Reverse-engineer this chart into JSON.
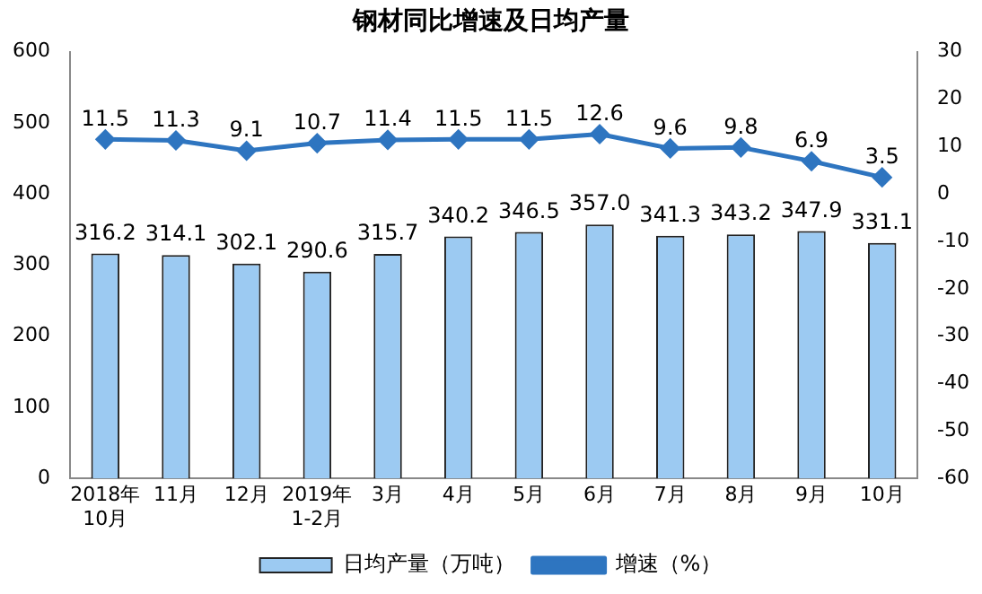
{
  "chart_data": {
    "type": "bar",
    "title": "钢材同比增速及日均产量",
    "categories": [
      "2018年\n10月",
      "11月",
      "12月",
      "2019年\n1-2月",
      "3月",
      "4月",
      "5月",
      "6月",
      "7月",
      "8月",
      "9月",
      "10月"
    ],
    "series": [
      {
        "name": "日均产量（万吨）",
        "color": "#9ccaf2",
        "values": [
          316.2,
          314.1,
          302.1,
          290.6,
          315.7,
          340.2,
          346.5,
          357.0,
          341.3,
          343.2,
          347.9,
          331.1
        ],
        "value_labels": [
          "316.2",
          "314.1",
          "302.1",
          "290.6",
          "315.7",
          "340.2",
          "346.5",
          "357.0",
          "341.3",
          "343.2",
          "347.9",
          "331.1"
        ]
      },
      {
        "name": "增速（%）",
        "type": "line",
        "axis": "y2",
        "color": "#2e75c0",
        "values": [
          11.5,
          11.3,
          9.1,
          10.7,
          11.4,
          11.5,
          11.5,
          12.6,
          9.6,
          9.8,
          6.9,
          3.5
        ],
        "marker": "diamond"
      }
    ],
    "data_labels": true,
    "ylim": [
      0,
      600
    ],
    "yticks": [
      0,
      100,
      200,
      300,
      400,
      500,
      600
    ],
    "y2lim": [
      -60,
      30
    ],
    "y2ticks": [
      -60,
      -50,
      -40,
      -30,
      -20,
      -10,
      0,
      10,
      20,
      30
    ],
    "grid": false,
    "legend": "bottom"
  }
}
